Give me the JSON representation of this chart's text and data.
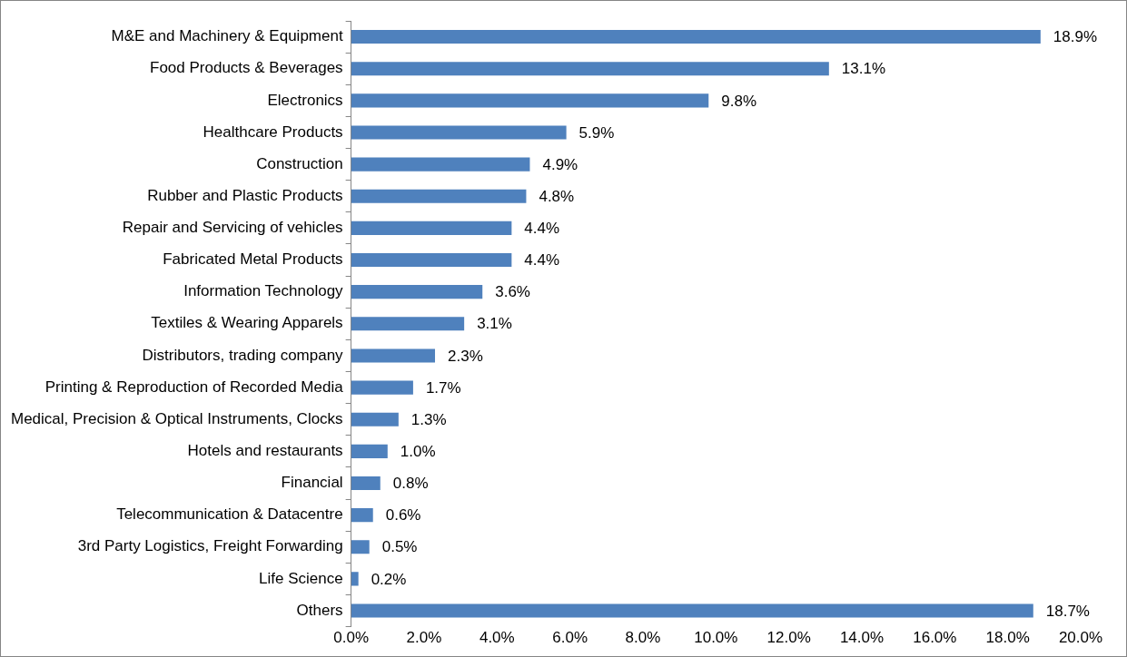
{
  "chart_data": {
    "type": "bar",
    "orientation": "horizontal",
    "categories": [
      "M&E and Machinery & Equipment",
      "Food Products & Beverages",
      "Electronics",
      "Healthcare Products",
      "Construction",
      "Rubber and Plastic Products",
      "Repair and Servicing of vehicles",
      "Fabricated Metal Products",
      "Information Technology",
      "Textiles & Wearing Apparels",
      "Distributors, trading company",
      "Printing & Reproduction of Recorded Media",
      "Medical, Precision & Optical Instruments, Clocks",
      "Hotels and restaurants",
      "Financial",
      "Telecommunication & Datacentre",
      "3rd Party Logistics, Freight Forwarding",
      "Life Science",
      "Others"
    ],
    "values": [
      18.9,
      13.1,
      9.8,
      5.9,
      4.9,
      4.8,
      4.4,
      4.4,
      3.6,
      3.1,
      2.3,
      1.7,
      1.3,
      1.0,
      0.8,
      0.6,
      0.5,
      0.2,
      18.7
    ],
    "value_labels": [
      "18.9%",
      "13.1%",
      "9.8%",
      "5.9%",
      "4.9%",
      "4.8%",
      "4.4%",
      "4.4%",
      "3.6%",
      "3.1%",
      "2.3%",
      "1.7%",
      "1.3%",
      "1.0%",
      "0.8%",
      "0.6%",
      "0.5%",
      "0.2%",
      "18.7%"
    ],
    "color": "#4f81bd",
    "xlim": [
      0,
      20
    ],
    "xticks": [
      {
        "value": 0,
        "label": "0.0%"
      },
      {
        "value": 2,
        "label": "2.0%"
      },
      {
        "value": 4,
        "label": "4.0%"
      },
      {
        "value": 6,
        "label": "6.0%"
      },
      {
        "value": 8,
        "label": "8.0%"
      },
      {
        "value": 10,
        "label": "10.0%"
      },
      {
        "value": 12,
        "label": "12.0%"
      },
      {
        "value": 14,
        "label": "14.0%"
      },
      {
        "value": 16,
        "label": "16.0%"
      },
      {
        "value": 18,
        "label": "18.0%"
      },
      {
        "value": 20,
        "label": "20.0%"
      }
    ],
    "grid": false,
    "legend": false
  }
}
